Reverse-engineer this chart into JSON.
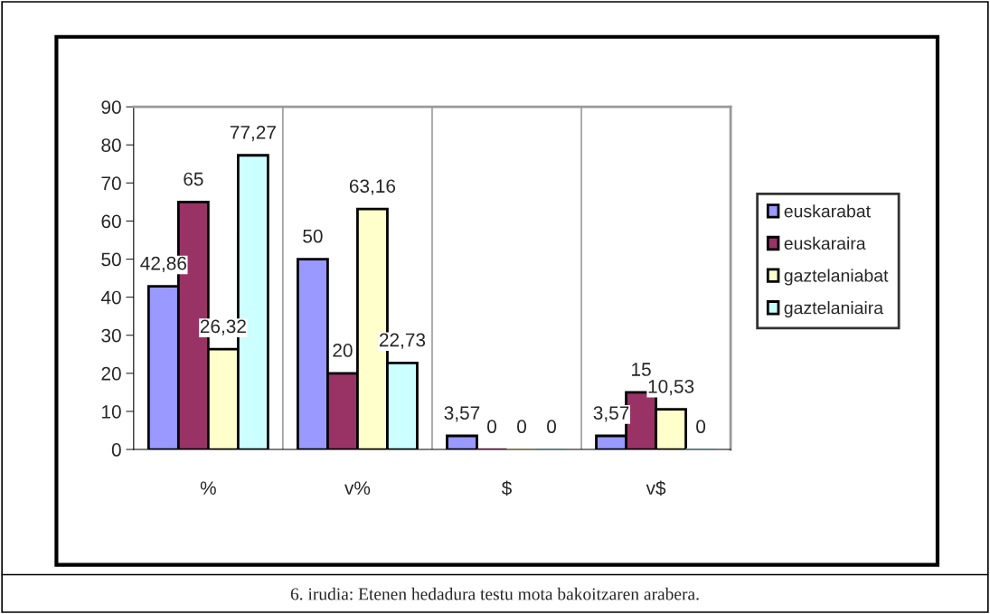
{
  "chart_data": {
    "type": "bar",
    "categories": [
      "%",
      "v%",
      "$",
      "v$"
    ],
    "series": [
      {
        "name": "euskarabat",
        "color": "#9999ff",
        "values": [
          42.86,
          50,
          3.57,
          3.57
        ],
        "value_labels": [
          "42,86",
          "50",
          "3,57",
          "3,57"
        ]
      },
      {
        "name": "euskaraira",
        "color": "#993366",
        "values": [
          65,
          20,
          0,
          15
        ],
        "value_labels": [
          "65",
          "20",
          "0",
          "15"
        ]
      },
      {
        "name": "gaztelaniabat",
        "color": "#ffffcc",
        "values": [
          26.32,
          63.16,
          0,
          10.53
        ],
        "value_labels": [
          "26,32",
          "63,16",
          "0",
          "10,53"
        ]
      },
      {
        "name": "gaztelaniaira",
        "color": "#ccffff",
        "values": [
          77.27,
          22.73,
          0,
          0
        ],
        "value_labels": [
          "77,27",
          "22,73",
          "0",
          "0"
        ]
      }
    ],
    "ylim": [
      0,
      90
    ],
    "yticks": [
      0,
      10,
      20,
      30,
      40,
      50,
      60,
      70,
      80,
      90
    ],
    "grid": "x",
    "legend": "right",
    "annotations": [
      "6. irudia: Etenen hedadura testu mota bakoitzaren arabera."
    ]
  }
}
